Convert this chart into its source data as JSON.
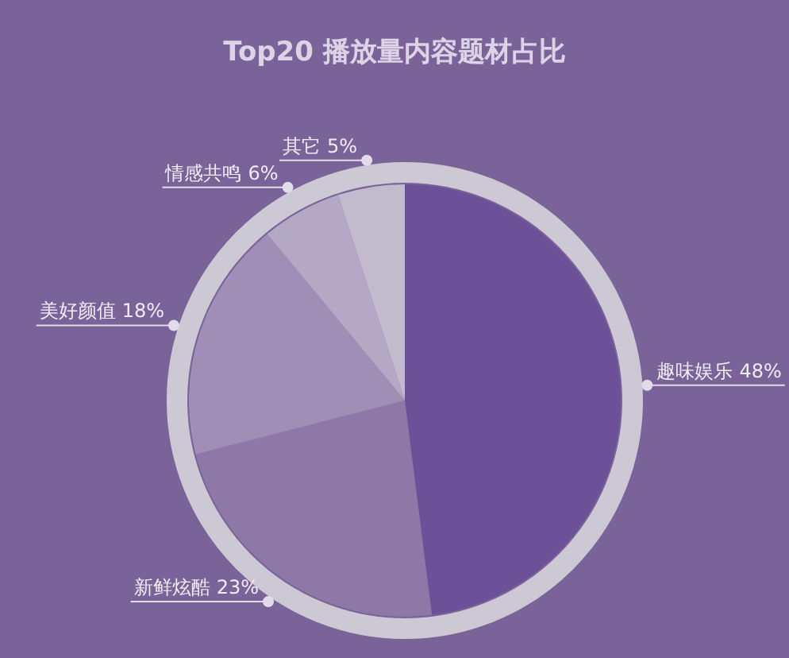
{
  "chart_data": {
    "type": "pie",
    "title": "Top20 播放量内容题材占比",
    "categories": [
      "趣味娱乐",
      "新鲜炫酷",
      "美好颜值",
      "情感共鸣",
      "其它"
    ],
    "values": [
      48,
      23,
      18,
      6,
      5
    ],
    "colors": [
      "#6d5198",
      "#8e78a8",
      "#a08eb6",
      "#b4a9c4",
      "#c2bbcd"
    ],
    "value_labels": [
      "48%",
      "23%",
      "18%",
      "6%",
      "5%"
    ]
  }
}
